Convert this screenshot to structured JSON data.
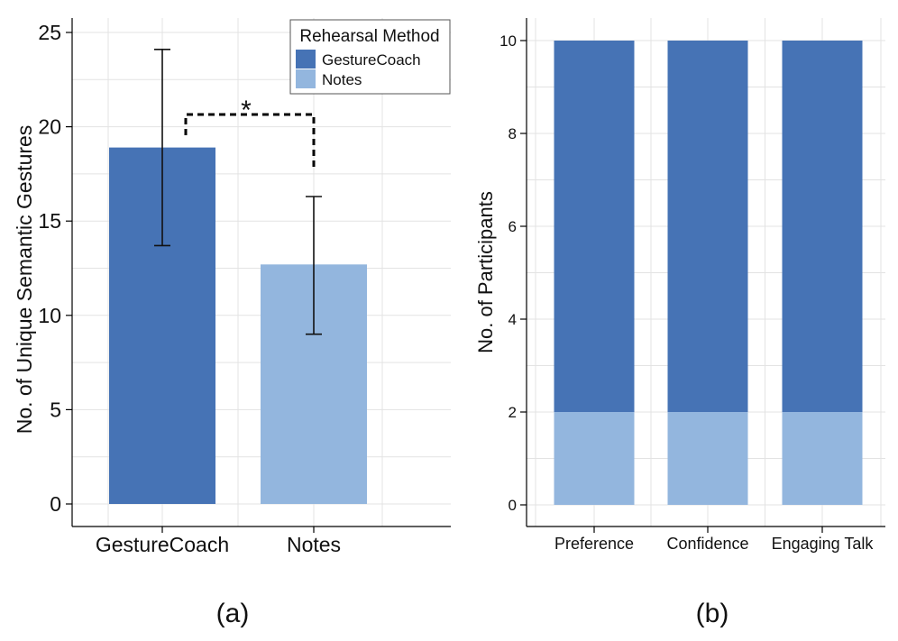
{
  "colors": {
    "GestureCoach": "#4673b5",
    "Notes": "#93b6de"
  },
  "panel_labels": [
    "(a)",
    "(b)"
  ],
  "significance_marker": "*",
  "chart_data": [
    {
      "type": "bar",
      "panel": "(a)",
      "categories": [
        "GestureCoach",
        "Notes"
      ],
      "values": [
        18.9,
        12.7
      ],
      "errors": [
        [
          13.7,
          24.1
        ],
        [
          9.0,
          16.3
        ]
      ],
      "xlabel": "",
      "ylabel": "No. of Unique Semantic Gestures",
      "ylim": [
        0,
        25
      ],
      "yticks": [
        0,
        5,
        10,
        15,
        20,
        25
      ],
      "grid": true,
      "significance": {
        "between": [
          "GestureCoach",
          "Notes"
        ],
        "label": "*"
      },
      "legend": {
        "title": "Rehearsal Method",
        "entries": [
          "GestureCoach",
          "Notes"
        ],
        "placement": "top-right"
      }
    },
    {
      "type": "bar",
      "stacked": true,
      "panel": "(b)",
      "categories": [
        "Preference",
        "Confidence",
        "Engaging Talk"
      ],
      "series": [
        {
          "name": "Notes",
          "values": [
            2,
            2,
            2
          ]
        },
        {
          "name": "GestureCoach",
          "values": [
            8,
            8,
            8
          ]
        }
      ],
      "xlabel": "",
      "ylabel": "No. of Participants",
      "ylim": [
        0,
        10.5
      ],
      "yticks": [
        0,
        2,
        4,
        6,
        8,
        10
      ],
      "grid": true
    }
  ]
}
